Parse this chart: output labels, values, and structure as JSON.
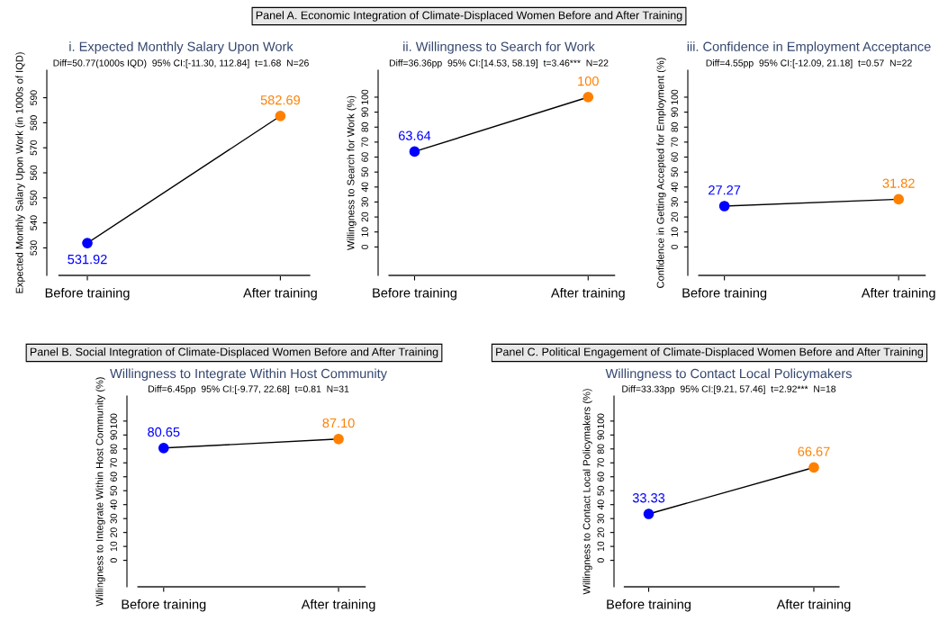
{
  "chart_data": [
    {
      "type": "line",
      "title": "i. Expected Monthly Salary Upon Work",
      "subtitle": "Diff=50.77(1000s IQD)  95% CI:[-11.30, 112.84]  t=1.68  N=26",
      "ylabel": "Expected Monthly Salary Upon Work (in 1000s of IQD)",
      "annotations": [
        "Panel A. Economic Integration of Climate-Displaced Women Before and After Training"
      ],
      "categories": [
        "Before training",
        "After training"
      ],
      "series": [
        {
          "color": "#000000",
          "colors": [
            "#0000ff",
            "#ff8000"
          ],
          "values": [
            531.92,
            582.69
          ]
        }
      ],
      "ylim": [
        519,
        601
      ],
      "yticks": [
        530,
        540,
        550,
        560,
        570,
        580,
        590
      ],
      "marker": "circle",
      "data_labels": true,
      "grid": false,
      "legend": false
    },
    {
      "type": "line",
      "title": "ii. Willingness to Search for Work",
      "subtitle": "Diff=36.36pp  95% CI:[14.53, 58.19]  t=3.46***  N=22",
      "ylabel": "Willingness to Search for Work (%)",
      "categories": [
        "Before training",
        "After training"
      ],
      "series": [
        {
          "color": "#000000",
          "colors": [
            "#0000ff",
            "#ff8000"
          ],
          "values": [
            63.64,
            100
          ]
        }
      ],
      "ylim": [
        -19,
        118
      ],
      "yticks": [
        0,
        10,
        20,
        30,
        40,
        50,
        60,
        70,
        80,
        90,
        100
      ],
      "marker": "circle",
      "data_labels": true,
      "grid": false,
      "legend": false
    },
    {
      "type": "line",
      "title": "iii. Confidence in Employment Acceptance",
      "subtitle": "Diff=4.55pp  95% CI:[-12.09, 21.18]  t=0.57  N=22",
      "ylabel": "Confidence in Getting Accepted for Employment (%)",
      "categories": [
        "Before training",
        "After training"
      ],
      "series": [
        {
          "color": "#000000",
          "colors": [
            "#0000ff",
            "#ff8000"
          ],
          "values": [
            27.27,
            31.82
          ]
        }
      ],
      "ylim": [
        -19,
        118
      ],
      "yticks": [
        0,
        10,
        20,
        30,
        40,
        50,
        60,
        70,
        80,
        90,
        100
      ],
      "marker": "circle",
      "data_labels": true,
      "grid": false,
      "legend": false
    },
    {
      "type": "line",
      "title": "Willingness to Integrate Within Host Community",
      "subtitle": "Diff=6.45pp  95% CI:[-9.77, 22.68]  t=0.81  N=31",
      "ylabel": "Willingness to Integrate Within Host Community (%)",
      "annotations": [
        "Panel B. Social Integration of Climate-Displaced Women Before and After Training"
      ],
      "categories": [
        "Before training",
        "After training"
      ],
      "series": [
        {
          "color": "#000000",
          "colors": [
            "#0000ff",
            "#ff8000"
          ],
          "values": [
            80.65,
            87.1
          ]
        }
      ],
      "ylim": [
        -19,
        118
      ],
      "yticks": [
        0,
        10,
        20,
        30,
        40,
        50,
        60,
        70,
        80,
        90,
        100
      ],
      "marker": "circle",
      "value_labels": [
        "80.65",
        "87.10"
      ],
      "grid": false,
      "legend": false
    },
    {
      "type": "line",
      "title": "Willingness to Contact Local Policymakers",
      "subtitle": "Diff=33.33pp  95% CI:[9.21, 57.46]  t=2.92***  N=18",
      "ylabel": "Willingness to Contact Local Policymakers (%)",
      "annotations": [
        "Panel C. Political Engagement of Climate-Displaced Women Before and After Training"
      ],
      "categories": [
        "Before training",
        "After training"
      ],
      "series": [
        {
          "color": "#000000",
          "colors": [
            "#0000ff",
            "#ff8000"
          ],
          "values": [
            33.33,
            66.67
          ]
        }
      ],
      "ylim": [
        -19,
        118
      ],
      "yticks": [
        0,
        10,
        20,
        30,
        40,
        50,
        60,
        70,
        80,
        90,
        100
      ],
      "marker": "circle",
      "data_labels": true,
      "grid": false,
      "legend": false
    }
  ]
}
